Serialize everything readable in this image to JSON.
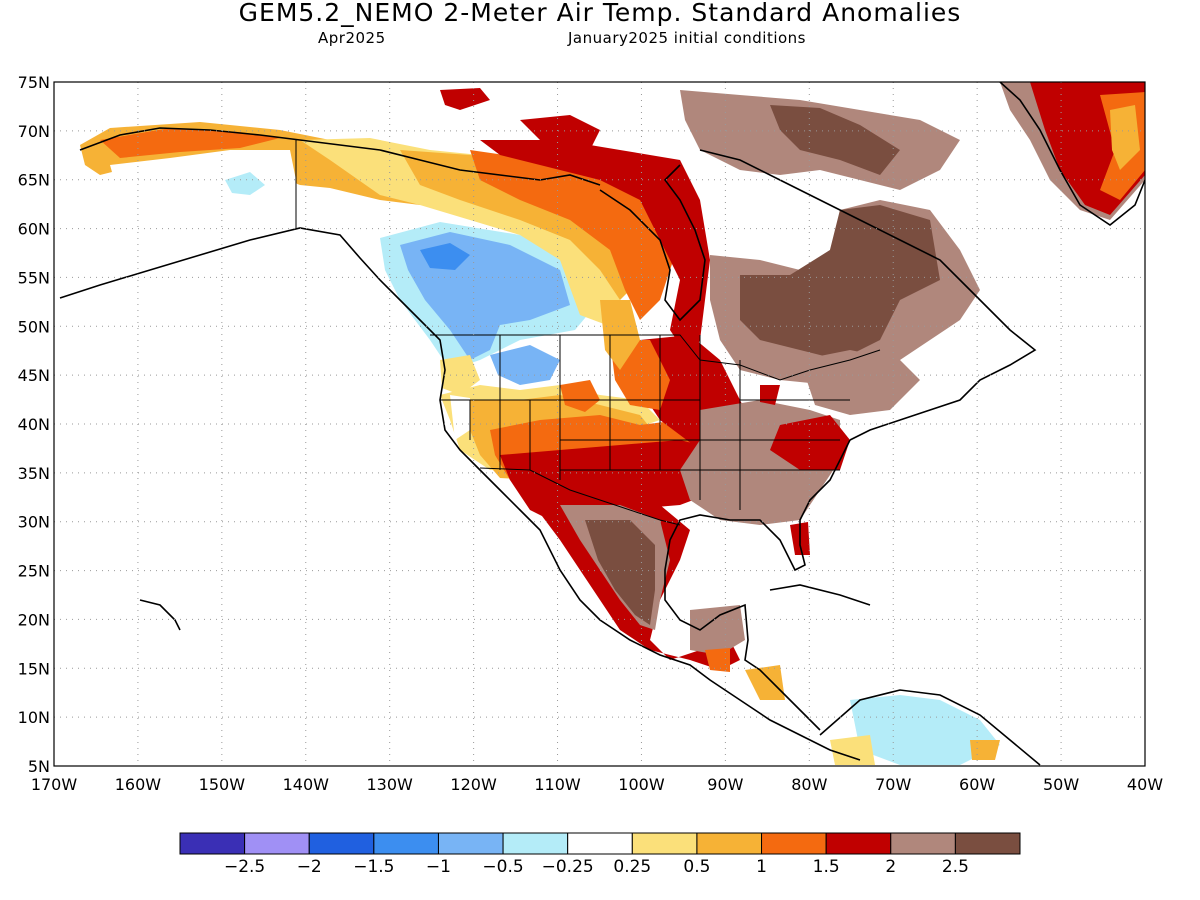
{
  "header": {
    "title": "GEM5.2_NEMO 2-Meter Air Temp. Standard Anomalies",
    "valid_month": "Apr2025",
    "init": "January2025 initial conditions"
  },
  "map": {
    "lat_labels": [
      "75N",
      "70N",
      "65N",
      "60N",
      "55N",
      "50N",
      "45N",
      "40N",
      "35N",
      "30N",
      "25N",
      "20N",
      "15N",
      "10N",
      "5N"
    ],
    "lon_labels": [
      "170W",
      "160W",
      "150W",
      "140W",
      "130W",
      "120W",
      "110W",
      "100W",
      "90W",
      "80W",
      "70W",
      "60W",
      "50W",
      "40W"
    ],
    "lon_range": [
      -170,
      -40
    ],
    "lat_range": [
      5,
      75
    ],
    "grid": "dotted",
    "fills": [
      {
        "region": "alaska-north",
        "category": "0.5 to 1"
      },
      {
        "region": "alaska-interior",
        "category": "-0.25 to 0.25"
      },
      {
        "region": "pacific-northwest-canada",
        "category": "-1 to -0.5"
      },
      {
        "region": "hudson-bay-west",
        "category": "1.5 to 2"
      },
      {
        "region": "quebec-labrador",
        "category": "above 2.5"
      },
      {
        "region": "southwest-us",
        "category": "1.5 to 2"
      },
      {
        "region": "mexico",
        "category": "above 2.5"
      },
      {
        "region": "southeast-us",
        "category": "2 to 2.5"
      },
      {
        "region": "greenland-south",
        "category": "1.5 to 2"
      }
    ]
  },
  "legend": {
    "colors": [
      "#3a2fb5",
      "#a090f5",
      "#2060e0",
      "#3c8ef0",
      "#78b4f5",
      "#b4ecf8",
      "#ffffff",
      "#fbe07a",
      "#f6b236",
      "#f46a10",
      "#c00000",
      "#b0877c",
      "#7a4e40"
    ],
    "labels": [
      "−2.5",
      "−2",
      "−1.5",
      "−1",
      "−0.5",
      "−0.25",
      "0.25",
      "0.5",
      "1",
      "1.5",
      "2",
      "2.5"
    ]
  }
}
